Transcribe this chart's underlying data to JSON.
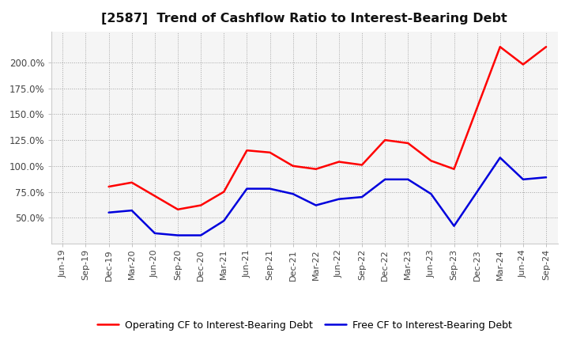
{
  "title": "[2587]  Trend of Cashflow Ratio to Interest-Bearing Debt",
  "x_labels": [
    "Jun-19",
    "Sep-19",
    "Dec-19",
    "Mar-20",
    "Jun-20",
    "Sep-20",
    "Dec-20",
    "Mar-21",
    "Jun-21",
    "Sep-21",
    "Dec-21",
    "Mar-22",
    "Jun-22",
    "Sep-22",
    "Dec-22",
    "Mar-23",
    "Jun-23",
    "Sep-23",
    "Dec-23",
    "Mar-24",
    "Jun-24",
    "Sep-24"
  ],
  "operating_cf": [
    null,
    null,
    80.0,
    84.0,
    null,
    58.0,
    62.0,
    75.0,
    115.0,
    113.0,
    100.0,
    97.0,
    104.0,
    101.0,
    125.0,
    122.0,
    105.0,
    97.0,
    null,
    215.0,
    198.0,
    215.0
  ],
  "free_cf": [
    null,
    null,
    55.0,
    57.0,
    35.0,
    33.0,
    33.0,
    47.0,
    78.0,
    78.0,
    73.0,
    62.0,
    68.0,
    70.0,
    87.0,
    87.0,
    73.0,
    42.0,
    null,
    108.0,
    87.0,
    89.0
  ],
  "ylim": [
    25,
    230
  ],
  "yticks": [
    50.0,
    75.0,
    100.0,
    125.0,
    150.0,
    175.0,
    200.0
  ],
  "operating_color": "#ff0000",
  "free_color": "#0000dd",
  "background_color": "#ffffff",
  "plot_bg_color": "#f5f5f5",
  "grid_color": "#999999",
  "legend_operating": "Operating CF to Interest-Bearing Debt",
  "legend_free": "Free CF to Interest-Bearing Debt",
  "title_fontsize": 11.5,
  "tick_fontsize": 8,
  "legend_fontsize": 9
}
